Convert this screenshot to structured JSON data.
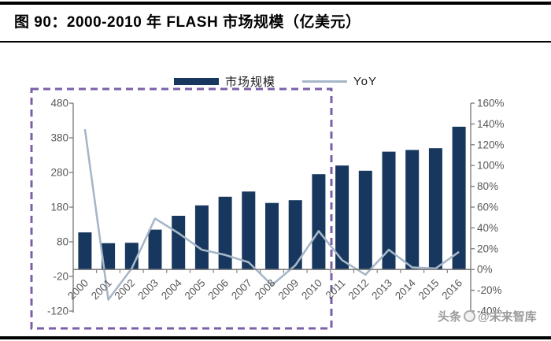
{
  "header": {
    "title": "图 90：2000-2010 年 FLASH 市场规模（亿美元）"
  },
  "legend": {
    "bar_label": "市场规模",
    "line_label": "YoY"
  },
  "watermark": {
    "text_left": "头条",
    "text_right": "@未来智库"
  },
  "colors": {
    "bar": "#17375E",
    "line": "#A6B7C8",
    "highlight_box": "#7B5FA8",
    "axis_text": "#595959",
    "axis_line": "#808080"
  },
  "chart_data": {
    "type": "bar",
    "subtype": "bar-with-line-dual-axis",
    "title": "2000-2010 年 FLASH 市场规模（亿美元）",
    "categories": [
      "2000",
      "2001",
      "2002",
      "2003",
      "2004",
      "2005",
      "2006",
      "2007",
      "2008",
      "2009",
      "2010",
      "2011",
      "2012",
      "2013",
      "2014",
      "2015",
      "2016"
    ],
    "series": [
      {
        "name": "市场规模",
        "type": "bar",
        "axis": "left",
        "unit": "亿美元",
        "values": [
          107,
          76,
          77,
          115,
          155,
          185,
          210,
          225,
          192,
          200,
          275,
          300,
          285,
          340,
          345,
          350,
          412
        ]
      },
      {
        "name": "YoY",
        "type": "line",
        "axis": "right",
        "unit": "%",
        "values": [
          135,
          -29,
          1,
          49,
          35,
          19,
          14,
          7,
          -15,
          4,
          37,
          9,
          -5,
          19,
          2,
          1,
          17
        ]
      }
    ],
    "left_axis": {
      "min": -120,
      "max": 480,
      "step": 100,
      "tick_labels": [
        "480",
        "380",
        "280",
        "180",
        "80",
        "-20",
        "-120"
      ]
    },
    "right_axis": {
      "min": -40,
      "max": 160,
      "step": 20,
      "tick_labels": [
        "160%",
        "140%",
        "120%",
        "100%",
        "80%",
        "60%",
        "40%",
        "20%",
        "0%",
        "-20%",
        "-40%"
      ]
    },
    "grid": false,
    "legend_position": "top-center",
    "highlight_box": {
      "covers_years": "2000-2010",
      "style": "purple-dashed-rectangle"
    }
  }
}
